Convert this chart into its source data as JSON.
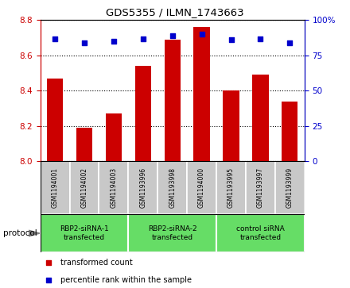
{
  "title": "GDS5355 / ILMN_1743663",
  "samples": [
    "GSM1194001",
    "GSM1194002",
    "GSM1194003",
    "GSM1193996",
    "GSM1193998",
    "GSM1194000",
    "GSM1193995",
    "GSM1193997",
    "GSM1193999"
  ],
  "bar_values": [
    8.47,
    8.19,
    8.27,
    8.54,
    8.69,
    8.76,
    8.4,
    8.49,
    8.34
  ],
  "percentile_values": [
    87,
    84,
    85,
    87,
    89,
    90,
    86,
    87,
    84
  ],
  "ylim_left": [
    8.0,
    8.8
  ],
  "ylim_right": [
    0,
    100
  ],
  "yticks_left": [
    8.0,
    8.2,
    8.4,
    8.6,
    8.8
  ],
  "yticks_right": [
    0,
    25,
    50,
    75,
    100
  ],
  "bar_color": "#CC0000",
  "dot_color": "#0000CC",
  "groups": [
    {
      "label": "RBP2-siRNA-1\ntransfected",
      "start": 0,
      "end": 3,
      "color": "#66DD66"
    },
    {
      "label": "RBP2-siRNA-2\ntransfected",
      "start": 3,
      "end": 6,
      "color": "#66DD66"
    },
    {
      "label": "control siRNA\ntransfected",
      "start": 6,
      "end": 9,
      "color": "#66DD66"
    }
  ],
  "protocol_label": "protocol",
  "legend_bar_label": "transformed count",
  "legend_dot_label": "percentile rank within the sample",
  "tick_label_color_left": "#CC0000",
  "tick_label_color_right": "#0000CC",
  "sample_box_color": "#C8C8C8",
  "bg_color": "#FFFFFF"
}
